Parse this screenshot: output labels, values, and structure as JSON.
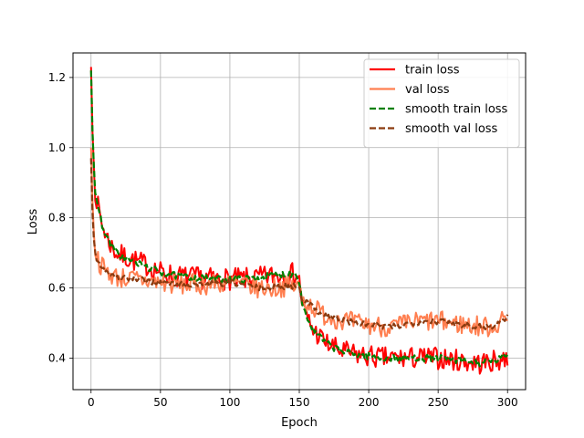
{
  "chart_data": {
    "type": "line",
    "title": "",
    "xlabel": "Epoch",
    "ylabel": "Loss",
    "xlim": [
      -13,
      313
    ],
    "ylim": [
      0.31,
      1.27
    ],
    "xticks": [
      0,
      50,
      100,
      150,
      200,
      250,
      300
    ],
    "yticks": [
      0.4,
      0.6,
      0.8,
      1.0,
      1.2
    ],
    "ytick_labels": [
      "0.4",
      "0.6",
      "0.8",
      "1.0",
      "1.2"
    ],
    "grid": true,
    "legend_position": "top-right",
    "noise_seed": 7,
    "series": [
      {
        "name": "train loss",
        "color": "#ff0000",
        "style": "solid",
        "noise": 0.032,
        "x": [
          0,
          1,
          2,
          3,
          5,
          8,
          12,
          16,
          20,
          30,
          40,
          50,
          60,
          70,
          80,
          90,
          100,
          110,
          120,
          130,
          140,
          148,
          150,
          152,
          155,
          160,
          165,
          170,
          180,
          190,
          200,
          210,
          220,
          230,
          240,
          250,
          260,
          270,
          280,
          290,
          300
        ],
        "y": [
          1.23,
          1.05,
          0.95,
          0.88,
          0.83,
          0.78,
          0.74,
          0.71,
          0.695,
          0.68,
          0.665,
          0.645,
          0.635,
          0.63,
          0.628,
          0.625,
          0.625,
          0.625,
          0.628,
          0.635,
          0.64,
          0.64,
          0.62,
          0.56,
          0.52,
          0.48,
          0.46,
          0.44,
          0.42,
          0.41,
          0.405,
          0.4,
          0.4,
          0.4,
          0.4,
          0.4,
          0.395,
          0.39,
          0.385,
          0.39,
          0.4
        ]
      },
      {
        "name": "val loss",
        "color": "#ff7f50",
        "style": "solid",
        "noise": 0.03,
        "x": [
          0,
          1,
          2,
          3,
          5,
          8,
          12,
          16,
          20,
          30,
          40,
          50,
          60,
          70,
          80,
          90,
          100,
          110,
          120,
          130,
          140,
          148,
          150,
          152,
          155,
          160,
          165,
          170,
          180,
          190,
          200,
          210,
          220,
          230,
          240,
          250,
          260,
          270,
          280,
          290,
          300
        ],
        "y": [
          1.0,
          0.85,
          0.76,
          0.71,
          0.68,
          0.66,
          0.645,
          0.635,
          0.63,
          0.625,
          0.62,
          0.615,
          0.61,
          0.61,
          0.61,
          0.612,
          0.615,
          0.61,
          0.6,
          0.6,
          0.605,
          0.605,
          0.6,
          0.57,
          0.56,
          0.545,
          0.53,
          0.52,
          0.51,
          0.5,
          0.495,
          0.49,
          0.49,
          0.5,
          0.505,
          0.505,
          0.5,
          0.495,
          0.49,
          0.49,
          0.515
        ]
      },
      {
        "name": "smooth train loss",
        "color": "#008000",
        "style": "dashed",
        "noise": 0.01,
        "x": [
          0,
          1,
          2,
          3,
          5,
          8,
          12,
          16,
          20,
          30,
          40,
          50,
          60,
          70,
          80,
          90,
          100,
          110,
          120,
          130,
          140,
          148,
          150,
          152,
          155,
          160,
          165,
          170,
          180,
          190,
          200,
          210,
          220,
          230,
          240,
          250,
          260,
          270,
          280,
          290,
          300
        ],
        "y": [
          1.22,
          1.05,
          0.95,
          0.88,
          0.83,
          0.78,
          0.74,
          0.71,
          0.695,
          0.675,
          0.66,
          0.645,
          0.635,
          0.63,
          0.628,
          0.625,
          0.625,
          0.625,
          0.628,
          0.635,
          0.64,
          0.64,
          0.62,
          0.56,
          0.52,
          0.48,
          0.46,
          0.44,
          0.42,
          0.41,
          0.405,
          0.4,
          0.4,
          0.4,
          0.4,
          0.4,
          0.395,
          0.39,
          0.385,
          0.39,
          0.41
        ]
      },
      {
        "name": "smooth val loss",
        "color": "#8b3a0f",
        "style": "dashed",
        "noise": 0.009,
        "x": [
          0,
          1,
          2,
          3,
          5,
          8,
          12,
          16,
          20,
          30,
          40,
          50,
          60,
          70,
          80,
          90,
          100,
          110,
          120,
          130,
          140,
          148,
          150,
          152,
          155,
          160,
          165,
          170,
          180,
          190,
          200,
          210,
          220,
          230,
          240,
          250,
          260,
          270,
          280,
          290,
          300
        ],
        "y": [
          0.97,
          0.82,
          0.74,
          0.7,
          0.675,
          0.66,
          0.645,
          0.635,
          0.63,
          0.625,
          0.62,
          0.615,
          0.61,
          0.61,
          0.61,
          0.612,
          0.615,
          0.61,
          0.6,
          0.6,
          0.605,
          0.605,
          0.6,
          0.57,
          0.56,
          0.545,
          0.53,
          0.52,
          0.51,
          0.5,
          0.495,
          0.49,
          0.49,
          0.5,
          0.505,
          0.505,
          0.5,
          0.495,
          0.49,
          0.49,
          0.52
        ]
      }
    ]
  }
}
